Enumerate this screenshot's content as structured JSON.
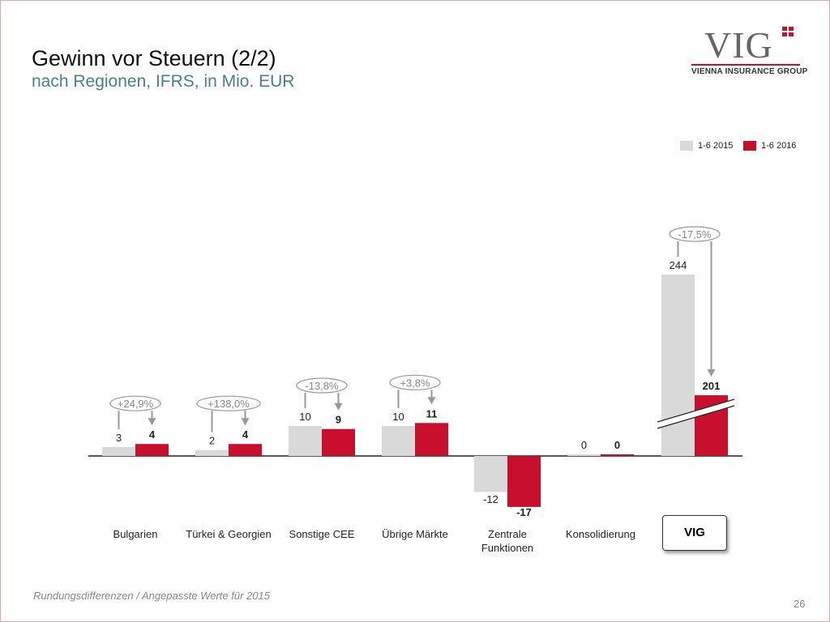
{
  "title": "Gewinn vor Steuern (2/2)",
  "subtitle": "nach Regionen, IFRS, in Mio. EUR",
  "logo": {
    "text": "VIG",
    "tagline": "VIENNA INSURANCE GROUP"
  },
  "footnote": "Rundungsdifferenzen / Angepasste Werte für 2015",
  "page_number": "26",
  "colors": {
    "2015": "#d9d9d9",
    "2016": "#c8102e",
    "accent_text": "#4b7f8c"
  },
  "chart_data": {
    "type": "bar",
    "categories": [
      "Bulgarien",
      "Türkei & Georgien",
      "Sonstige CEE",
      "Übrige Märkte",
      "Zentrale Funktionen",
      "Konsolidierung",
      "VIG"
    ],
    "series": [
      {
        "name": "1-6 2015",
        "values": [
          3,
          2,
          10,
          10,
          -12,
          0,
          244
        ],
        "labels": [
          "3",
          "2",
          "10",
          "10",
          "-12",
          "0",
          "244"
        ]
      },
      {
        "name": "1-6 2016",
        "values": [
          4,
          4,
          9,
          11,
          -17,
          0,
          201
        ],
        "labels": [
          "4",
          "4",
          "9",
          "11",
          "-17",
          "0",
          "201"
        ]
      }
    ],
    "changes": [
      "+24,9%",
      "+138,0%",
      "-13,8%",
      "+3,8%",
      null,
      null,
      "-17,5%"
    ],
    "axis_break_on": "VIG",
    "legend": "top-right"
  }
}
